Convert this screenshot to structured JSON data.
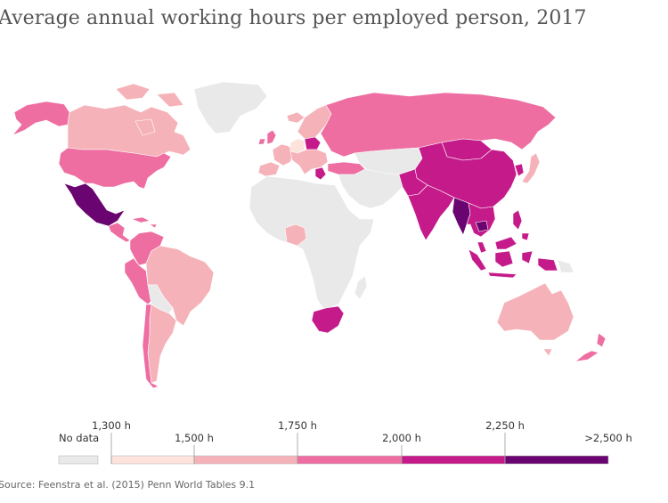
{
  "title": "Average annual working hours per employed person, 2017",
  "source": "Source: Feenstra et al. (2015) Penn World Tables 9.1",
  "colors": {
    "nodata": "#e9e9e9",
    "bin1": "#fde3dc",
    "bin2": "#f5b3b9",
    "bin3": "#ee6ea2",
    "bin4": "#c51b8a",
    "bin5": "#6a0470",
    "border": "#ffffff"
  },
  "legend": {
    "nodata_label": "No data",
    "bins": [
      {
        "key": "bin1",
        "tick_label": "1,300 h",
        "end_label": "1,500 h"
      },
      {
        "key": "bin2",
        "tick_label": "",
        "end_label": ""
      },
      {
        "key": "bin3",
        "tick_label": "1,750 h",
        "end_label": "2,000 h"
      },
      {
        "key": "bin4",
        "tick_label": "2,250 h",
        "end_label": ""
      },
      {
        "key": "bin5",
        "tick_label": "",
        "end_label": ">2,500 h"
      }
    ]
  },
  "regions": [
    {
      "id": "alaska",
      "bin": "bin3"
    },
    {
      "id": "canada",
      "bin": "bin2"
    },
    {
      "id": "greenland",
      "bin": "nodata"
    },
    {
      "id": "usa",
      "bin": "bin3"
    },
    {
      "id": "mexico",
      "bin": "bin5"
    },
    {
      "id": "central-america",
      "bin": "bin3"
    },
    {
      "id": "colombia-venezuela",
      "bin": "bin3"
    },
    {
      "id": "peru",
      "bin": "bin3"
    },
    {
      "id": "brazil",
      "bin": "bin2"
    },
    {
      "id": "bolivia-paraguay",
      "bin": "nodata"
    },
    {
      "id": "argentina",
      "bin": "bin2"
    },
    {
      "id": "chile",
      "bin": "bin3"
    },
    {
      "id": "iceland",
      "bin": "bin2"
    },
    {
      "id": "uk-ireland",
      "bin": "bin3"
    },
    {
      "id": "scandinavia",
      "bin": "bin2"
    },
    {
      "id": "western-europe",
      "bin": "bin2"
    },
    {
      "id": "germany",
      "bin": "bin1"
    },
    {
      "id": "poland",
      "bin": "bin4"
    },
    {
      "id": "iberia",
      "bin": "bin2"
    },
    {
      "id": "italy-balkans",
      "bin": "bin2"
    },
    {
      "id": "greece",
      "bin": "bin4"
    },
    {
      "id": "turkey",
      "bin": "bin3"
    },
    {
      "id": "russia",
      "bin": "bin3"
    },
    {
      "id": "kazakhstan-central-asia",
      "bin": "nodata"
    },
    {
      "id": "mongolia",
      "bin": "bin4"
    },
    {
      "id": "china",
      "bin": "bin4"
    },
    {
      "id": "japan",
      "bin": "bin2"
    },
    {
      "id": "korea",
      "bin": "bin4"
    },
    {
      "id": "middle-east",
      "bin": "nodata"
    },
    {
      "id": "india",
      "bin": "bin4"
    },
    {
      "id": "pakistan",
      "bin": "bin4"
    },
    {
      "id": "myanmar",
      "bin": "bin5"
    },
    {
      "id": "thailand-indochina",
      "bin": "bin4"
    },
    {
      "id": "cambodia",
      "bin": "bin5"
    },
    {
      "id": "philippines",
      "bin": "bin4"
    },
    {
      "id": "indonesia",
      "bin": "bin4"
    },
    {
      "id": "malaysia",
      "bin": "bin4"
    },
    {
      "id": "png",
      "bin": "nodata"
    },
    {
      "id": "australia",
      "bin": "bin2"
    },
    {
      "id": "new-zealand",
      "bin": "bin3"
    },
    {
      "id": "africa",
      "bin": "nodata"
    },
    {
      "id": "nigeria",
      "bin": "bin2"
    },
    {
      "id": "south-africa",
      "bin": "bin4"
    }
  ]
}
